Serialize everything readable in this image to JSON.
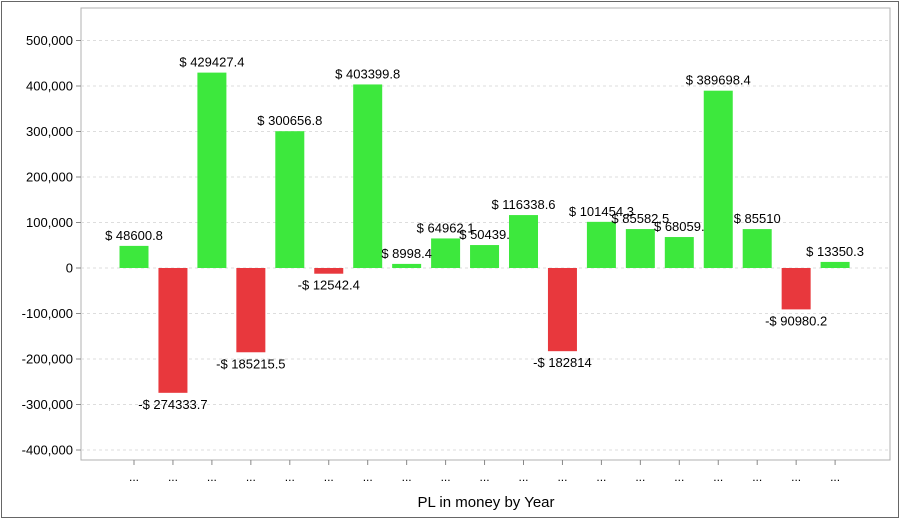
{
  "chart_data": {
    "type": "bar",
    "categories": [
      "...",
      "...",
      "...",
      "...",
      "...",
      "...",
      "...",
      "...",
      "...",
      "...",
      "...",
      "...",
      "...",
      "...",
      "...",
      "...",
      "...",
      "...",
      "..."
    ],
    "values": [
      48600.8,
      -274333.7,
      429427.4,
      -185215.5,
      300656.8,
      -12542.4,
      403399.8,
      8998.4,
      64962.1,
      50439,
      116338.6,
      -182814,
      101454.3,
      85582.5,
      68059,
      389698.4,
      85510,
      -90980.2,
      13350.3
    ],
    "data_labels": [
      "$ 48600.8",
      "-$ 274333.7",
      "$ 429427.4",
      "-$ 185215.5",
      "$ 300656.8",
      "-$ 12542.4",
      "$ 403399.8",
      "$ 8998.4",
      "$ 64962.1",
      "$ 50439.",
      "$ 116338.6",
      "-$ 182814",
      "$ 101454.3",
      "$ 85582.5",
      "$ 68059.",
      "$ 389698.4",
      "$ 85510",
      "-$ 90980.2",
      "$ 13350.3"
    ],
    "xlabel": "PL in money by Year",
    "ylabel": "",
    "ylim": [
      -400000,
      500000
    ],
    "yticks": [
      "500,000",
      "400,000",
      "300,000",
      "200,000",
      "100,000",
      "0",
      "-100,000",
      "-200,000",
      "-300,000",
      "-400,000"
    ],
    "grid": "horizontal dashed",
    "legend": "none",
    "colors": {
      "positive": "#3de83d",
      "negative": "#e8383d",
      "grid": "#dddddd",
      "axis": "#888888",
      "text": "#000000"
    }
  }
}
